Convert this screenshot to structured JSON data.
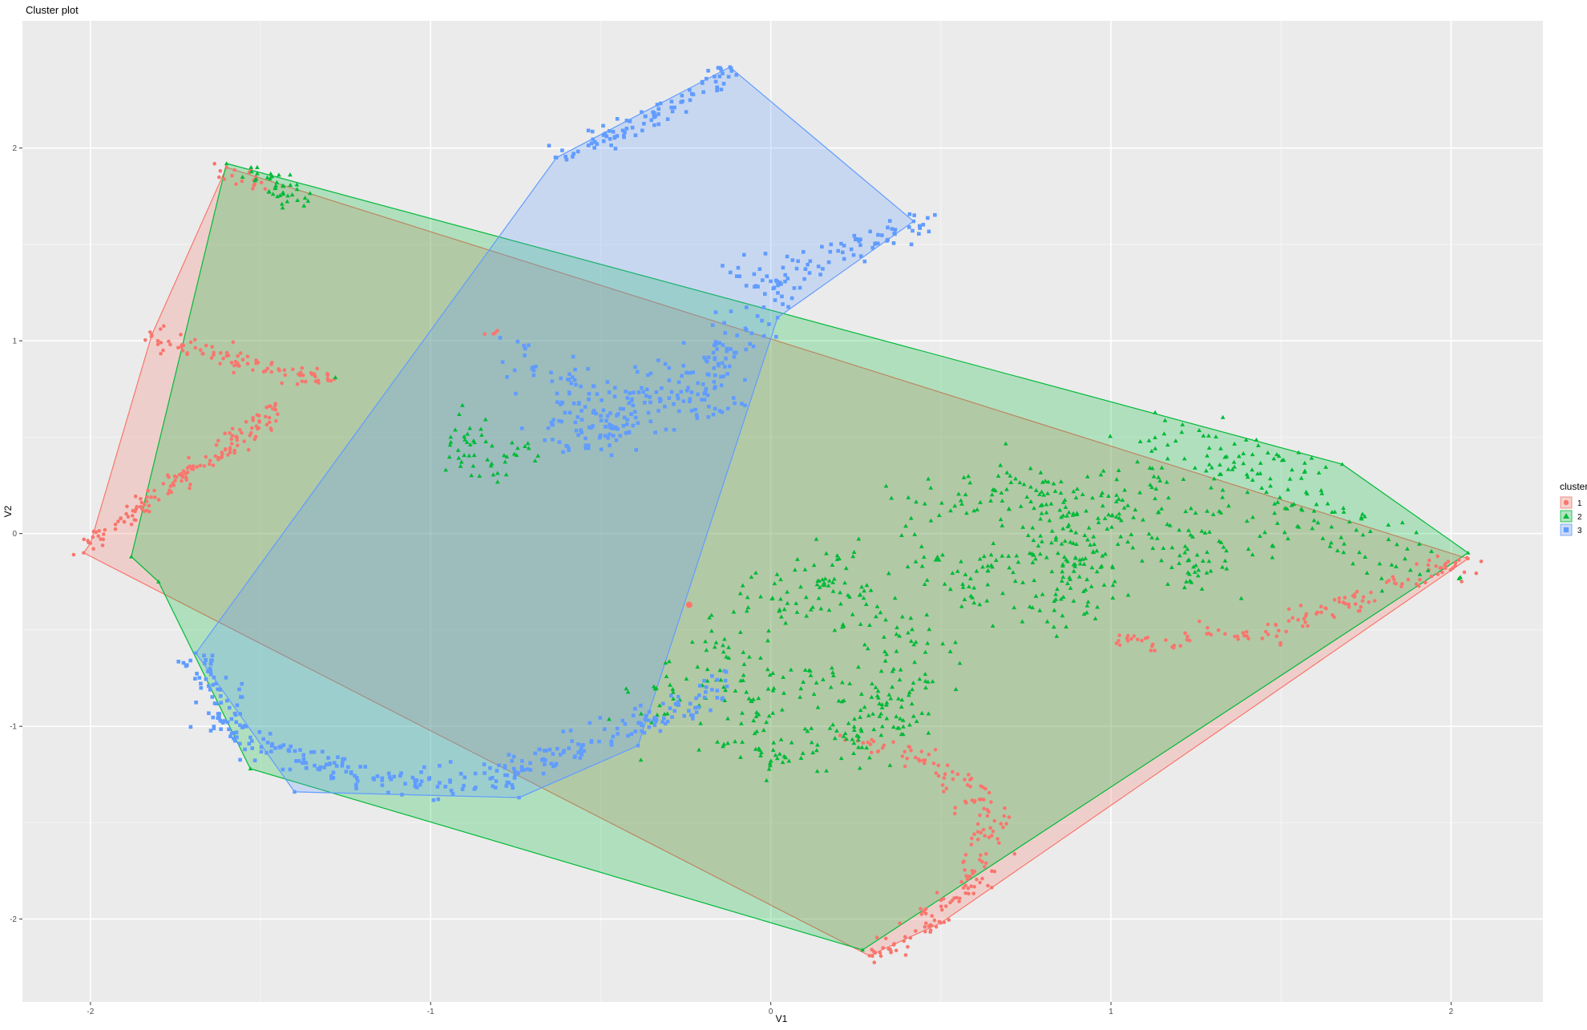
{
  "chart_data": {
    "type": "scatter",
    "title": "Cluster plot",
    "xlabel": "V1",
    "ylabel": "V2",
    "xlim": [
      -2.2,
      2.27
    ],
    "ylim": [
      -2.43,
      2.66
    ],
    "x_ticks": [
      -2,
      -1,
      0,
      1,
      2
    ],
    "x_tick_labels": [
      "-2",
      "-1",
      "0",
      "1",
      "2"
    ],
    "y_ticks": [
      -2,
      -1,
      0,
      1,
      2
    ],
    "y_tick_labels": [
      "-2",
      "-1",
      "0",
      "1",
      "2"
    ],
    "grid": true,
    "legend": {
      "title": "cluster",
      "position": "right",
      "items": [
        {
          "label": "1",
          "shape": "circle",
          "color": "#F8766D"
        },
        {
          "label": "2",
          "shape": "triangle",
          "color": "#00BA38"
        },
        {
          "label": "3",
          "shape": "square",
          "color": "#619CFF"
        }
      ]
    },
    "series": [
      {
        "name": "1",
        "shape": "circle",
        "color": "#F8766D",
        "hull": [
          [
            -2.0,
            -0.05
          ],
          [
            -1.82,
            1.03
          ],
          [
            -1.6,
            1.9
          ],
          [
            2.05,
            -0.13
          ],
          [
            0.5,
            -2.02
          ],
          [
            0.29,
            -2.19
          ],
          [
            -2.02,
            -0.1
          ]
        ],
        "centroid": [
          -0.24,
          -0.37
        ],
        "point_groups": [
          {
            "points": [
              [
                -2.02,
                -0.05
              ],
              [
                -1.96,
                0.02
              ],
              [
                -1.9,
                0.08
              ],
              [
                -1.84,
                0.16
              ],
              [
                -1.78,
                0.24
              ],
              [
                -1.72,
                0.3
              ],
              [
                -1.66,
                0.37
              ],
              [
                -1.6,
                0.44
              ],
              [
                -1.54,
                0.52
              ],
              [
                -1.48,
                0.6
              ],
              [
                -1.45,
                0.65
              ]
            ],
            "count": 150,
            "jitter": 0.025
          },
          {
            "points": [
              [
                -1.82,
                1.03
              ],
              [
                -1.74,
                0.97
              ],
              [
                -1.64,
                0.93
              ],
              [
                -1.54,
                0.88
              ],
              [
                -1.44,
                0.84
              ],
              [
                -1.36,
                0.82
              ],
              [
                -1.28,
                0.8
              ]
            ],
            "count": 90,
            "jitter": 0.025
          },
          {
            "points": [
              [
                -1.6,
                1.9
              ],
              [
                -1.55,
                1.84
              ],
              [
                -1.5,
                1.78
              ]
            ],
            "count": 18,
            "jitter": 0.02
          },
          {
            "points": [
              [
                -0.85,
                1.04
              ],
              [
                -0.8,
                1.03
              ]
            ],
            "count": 4,
            "jitter": 0.01
          },
          {
            "points": [
              [
                0.25,
                -1.08
              ],
              [
                0.35,
                -1.12
              ],
              [
                0.45,
                -1.15
              ],
              [
                0.52,
                -1.25
              ],
              [
                0.6,
                -1.35
              ],
              [
                0.65,
                -1.5
              ],
              [
                0.63,
                -1.65
              ],
              [
                0.6,
                -1.8
              ],
              [
                0.52,
                -1.92
              ],
              [
                0.45,
                -2.02
              ],
              [
                0.38,
                -2.12
              ],
              [
                0.3,
                -2.18
              ]
            ],
            "count": 180,
            "jitter": 0.03
          },
          {
            "points": [
              [
                1.0,
                -0.55
              ],
              [
                1.1,
                -0.57
              ],
              [
                1.2,
                -0.55
              ],
              [
                1.35,
                -0.5
              ],
              [
                1.45,
                -0.52
              ],
              [
                1.55,
                -0.45
              ],
              [
                1.65,
                -0.38
              ],
              [
                1.75,
                -0.32
              ],
              [
                1.85,
                -0.25
              ],
              [
                1.95,
                -0.18
              ],
              [
                2.05,
                -0.13
              ]
            ],
            "count": 130,
            "jitter": 0.03
          }
        ]
      },
      {
        "name": "2",
        "shape": "triangle",
        "color": "#00BA38",
        "hull": [
          [
            -1.88,
            -0.12
          ],
          [
            -1.6,
            1.92
          ],
          [
            1.68,
            0.36
          ],
          [
            2.05,
            -0.1
          ],
          [
            0.27,
            -2.16
          ],
          [
            -1.53,
            -1.22
          ],
          [
            -1.8,
            -0.25
          ]
        ],
        "centroid": [
          0.49,
          -0.13
        ],
        "point_groups": [
          {
            "points": [
              [
                -1.55,
                1.88
              ],
              [
                -1.45,
                1.83
              ],
              [
                -1.4,
                1.72
              ]
            ],
            "count": 40,
            "jitter": 0.03
          },
          {
            "points": [
              [
                -1.28,
                0.81
              ]
            ],
            "count": 1,
            "jitter": 0.0
          },
          {
            "points": [
              [
                -0.9,
                0.6
              ],
              [
                -0.88,
                0.45
              ],
              [
                -0.88,
                0.3
              ],
              [
                -0.78,
                0.38
              ],
              [
                -0.75,
                0.45
              ]
            ],
            "count": 50,
            "jitter": 0.04
          },
          {
            "points": [
              [
                -0.35,
                -0.95
              ],
              [
                -0.25,
                -0.8
              ],
              [
                -0.15,
                -0.6
              ],
              [
                -0.05,
                -0.45
              ],
              [
                0.05,
                -0.3
              ],
              [
                0.15,
                -0.2
              ],
              [
                0.25,
                -0.35
              ],
              [
                0.35,
                -0.55
              ],
              [
                0.45,
                -0.7
              ],
              [
                0.35,
                -0.95
              ],
              [
                0.2,
                -0.8
              ],
              [
                0.05,
                -0.75
              ],
              [
                -0.1,
                -0.9
              ],
              [
                -0.05,
                -1.15
              ],
              [
                0.4,
                -1.0
              ]
            ],
            "count": 350,
            "jitter": 0.07
          },
          {
            "points": [
              [
                0.4,
                -0.1
              ],
              [
                0.5,
                -0.2
              ],
              [
                0.6,
                -0.35
              ],
              [
                0.7,
                -0.15
              ],
              [
                0.85,
                0.15
              ],
              [
                0.9,
                -0.2
              ],
              [
                0.8,
                -0.45
              ],
              [
                0.95,
                0.05
              ],
              [
                1.05,
                0.25
              ],
              [
                1.15,
                0.0
              ],
              [
                1.25,
                -0.25
              ],
              [
                1.35,
                0.1
              ],
              [
                1.45,
                -0.1
              ],
              [
                1.6,
                0.2
              ],
              [
                1.75,
                -0.15
              ],
              [
                1.9,
                -0.12
              ],
              [
                1.3,
                0.45
              ],
              [
                1.1,
                0.5
              ],
              [
                1.55,
                0.35
              ],
              [
                0.4,
                0.12
              ],
              [
                0.7,
                0.3
              ],
              [
                1.0,
                -0.35
              ]
            ],
            "count": 520,
            "jitter": 0.07
          }
        ]
      },
      {
        "name": "3",
        "shape": "square",
        "color": "#619CFF",
        "hull": [
          [
            -0.63,
            1.95
          ],
          [
            -0.12,
            2.42
          ],
          [
            0.42,
            1.62
          ],
          [
            0.02,
            1.12
          ],
          [
            -0.39,
            -1.1
          ],
          [
            -0.74,
            -1.37
          ],
          [
            -1.4,
            -1.34
          ],
          [
            -1.69,
            -0.62
          ]
        ],
        "centroid": [
          -0.54,
          0.45
        ],
        "point_groups": [
          {
            "points": [
              [
                -0.62,
                1.95
              ],
              [
                -0.5,
                2.05
              ],
              [
                -0.38,
                2.13
              ],
              [
                -0.28,
                2.22
              ],
              [
                -0.2,
                2.3
              ],
              [
                -0.15,
                2.38
              ],
              [
                -0.12,
                2.42
              ]
            ],
            "count": 90,
            "jitter": 0.025
          },
          {
            "points": [
              [
                -0.1,
                1.35
              ],
              [
                0.0,
                1.3
              ],
              [
                0.05,
                1.4
              ],
              [
                0.15,
                1.45
              ],
              [
                0.25,
                1.5
              ],
              [
                0.35,
                1.58
              ],
              [
                0.42,
                1.62
              ],
              [
                -0.05,
                1.2
              ],
              [
                0.1,
                1.25
              ]
            ],
            "count": 100,
            "jitter": 0.04
          },
          {
            "points": [
              [
                -0.75,
                0.95
              ],
              [
                -0.7,
                0.75
              ],
              [
                -0.6,
                0.85
              ],
              [
                -0.55,
                0.6
              ],
              [
                -0.45,
                0.5
              ],
              [
                -0.4,
                0.7
              ],
              [
                -0.3,
                0.75
              ],
              [
                -0.2,
                0.6
              ],
              [
                -0.15,
                0.9
              ],
              [
                -0.1,
                1.05
              ],
              [
                -0.05,
                1.1
              ],
              [
                -0.5,
                0.45
              ],
              [
                -0.65,
                0.5
              ],
              [
                -0.35,
                0.85
              ]
            ],
            "count": 260,
            "jitter": 0.05
          },
          {
            "points": [
              [
                -1.68,
                -0.65
              ],
              [
                -1.63,
                -0.8
              ],
              [
                -1.58,
                -1.05
              ],
              [
                -1.5,
                -1.1
              ],
              [
                -1.4,
                -1.15
              ],
              [
                -1.3,
                -1.2
              ],
              [
                -1.2,
                -1.25
              ],
              [
                -1.1,
                -1.28
              ],
              [
                -1.0,
                -1.3
              ],
              [
                -0.9,
                -1.3
              ],
              [
                -0.8,
                -1.25
              ],
              [
                -0.7,
                -1.2
              ],
              [
                -0.6,
                -1.12
              ],
              [
                -0.5,
                -1.05
              ],
              [
                -0.4,
                -1.0
              ],
              [
                -0.3,
                -0.95
              ],
              [
                -0.2,
                -0.85
              ],
              [
                -0.15,
                -0.72
              ]
            ],
            "count": 340,
            "jitter": 0.035
          }
        ]
      }
    ]
  }
}
